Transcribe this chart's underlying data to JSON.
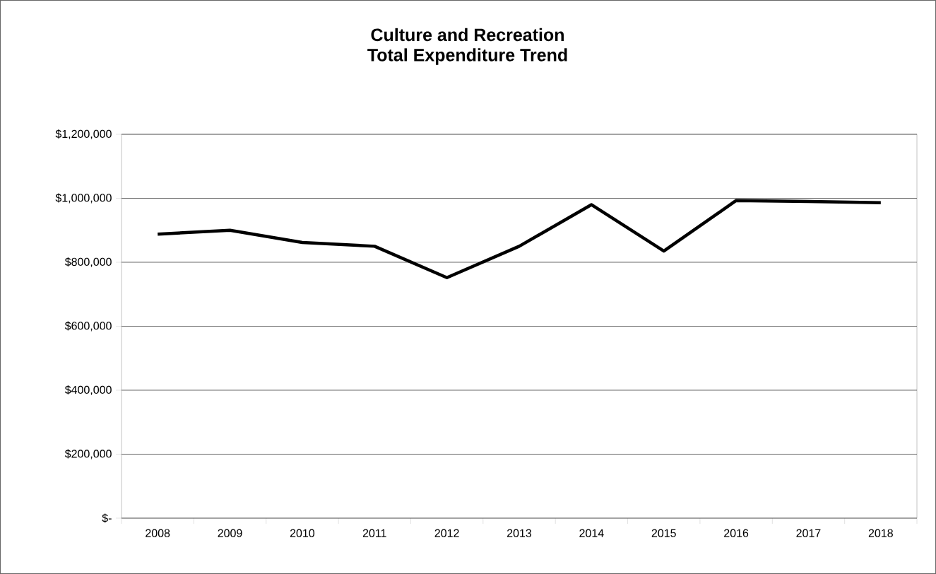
{
  "chart_data": {
    "type": "line",
    "title": "Culture and Recreation",
    "subtitle": "Total Expenditure Trend",
    "categories": [
      "2008",
      "2009",
      "2010",
      "2011",
      "2012",
      "2013",
      "2014",
      "2015",
      "2016",
      "2017",
      "2018"
    ],
    "series": [
      {
        "color": "#000000",
        "values": [
          888000,
          900000,
          862000,
          850000,
          752000,
          850000,
          980000,
          835000,
          993000,
          990000,
          986000
        ]
      }
    ],
    "ylim": [
      0,
      1200000
    ],
    "yticks": [
      {
        "value": 0,
        "label": "$-"
      },
      {
        "value": 200000,
        "label": "$200,000"
      },
      {
        "value": 400000,
        "label": "$400,000"
      },
      {
        "value": 600000,
        "label": "$600,000"
      },
      {
        "value": 800000,
        "label": "$800,000"
      },
      {
        "value": 1000000,
        "label": "$1,000,000"
      },
      {
        "value": 1200000,
        "label": "$1,200,000"
      }
    ],
    "grid": "y"
  }
}
